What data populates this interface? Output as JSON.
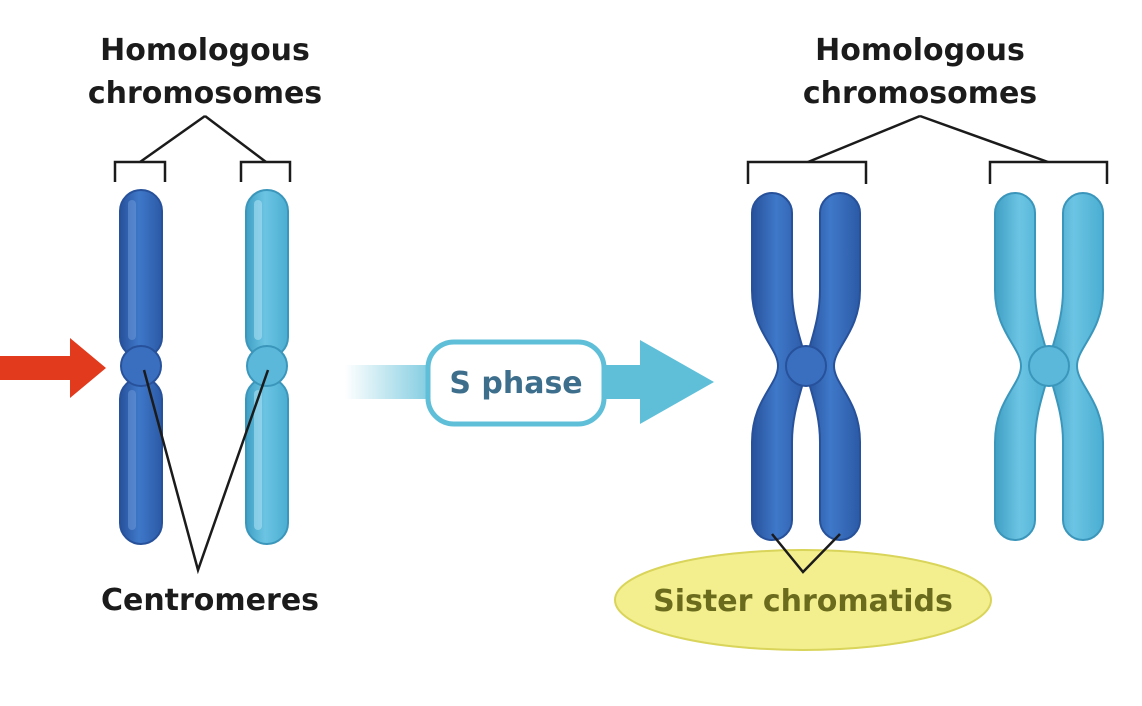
{
  "labels": {
    "left_homologous_line1": "Homologous",
    "left_homologous_line2": "chromosomes",
    "right_homologous_line1": "Homologous",
    "right_homologous_line2": "chromosomes",
    "centromeres": "Centromeres",
    "s_phase": "S phase",
    "sister_chromatids": "Sister chromatids"
  },
  "colors": {
    "dark_chromosome": "#3a6fc0",
    "dark_chromosome_edge": "#27519a",
    "light_chromosome": "#5bb8da",
    "light_chromosome_edge": "#3b96bb",
    "red_arrow": "#e23a1c",
    "s_phase_arrow": "#5fbfd8",
    "s_phase_box_border": "#5fbfd8",
    "sister_ellipse_fill": "#f3ef8e",
    "sister_ellipse_edge": "#d9d45a",
    "bracket_line": "#1b1b1b"
  }
}
